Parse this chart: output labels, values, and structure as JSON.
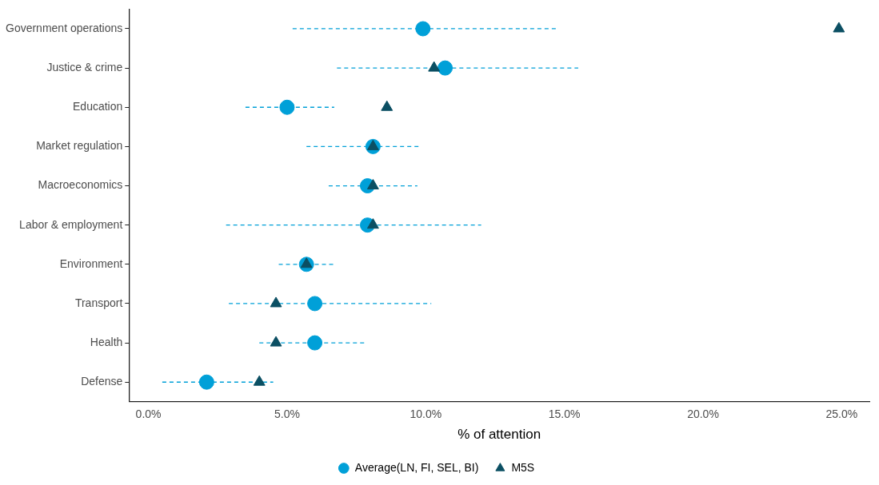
{
  "chart_data": {
    "type": "scatter",
    "orientation": "horizontal",
    "xlabel": "% of attention",
    "categories": [
      "Government operations",
      "Justice & crime",
      "Education",
      "Market regulation",
      "Macroeconomics",
      "Labor & employment",
      "Environment",
      "Transport",
      "Health",
      "Defense"
    ],
    "series": [
      {
        "name": "Average(LN, FI, SEL, BI)",
        "color": "#00a0d8",
        "marker": "circle",
        "line_style": "dashed",
        "values": [
          9.9,
          10.7,
          5.0,
          8.1,
          7.9,
          7.9,
          5.7,
          6.0,
          6.0,
          2.1
        ],
        "errors": [
          [
            5.2,
            14.7
          ],
          [
            6.8,
            15.5
          ],
          [
            3.5,
            6.7
          ],
          [
            5.7,
            9.8
          ],
          [
            6.5,
            9.7
          ],
          [
            2.8,
            12.0
          ],
          [
            4.7,
            6.7
          ],
          [
            2.9,
            10.2
          ],
          [
            4.0,
            7.8
          ],
          [
            0.5,
            4.5
          ]
        ]
      },
      {
        "name": "M5S",
        "color": "#0b4f63",
        "marker": "triangle",
        "values": [
          24.9,
          10.3,
          8.6,
          8.1,
          8.1,
          8.1,
          5.7,
          4.6,
          4.6,
          4.0
        ]
      }
    ],
    "xlim": [
      -0.7,
      26
    ],
    "xticks": [
      {
        "value": 0,
        "label": "0.0%"
      },
      {
        "value": 5,
        "label": "5.0%"
      },
      {
        "value": 10,
        "label": "10.0%"
      },
      {
        "value": 15,
        "label": "15.0%"
      },
      {
        "value": 20,
        "label": "20.0%"
      },
      {
        "value": 25,
        "label": "25.0%"
      }
    ],
    "grid": false,
    "legend": "bottom"
  }
}
